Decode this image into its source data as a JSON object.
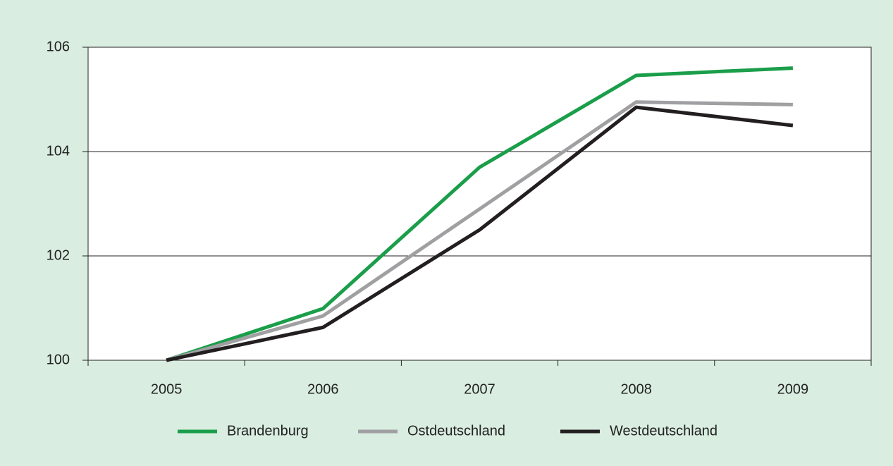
{
  "chart_data": {
    "type": "line",
    "categories": [
      "2005",
      "2006",
      "2007",
      "2008",
      "2009"
    ],
    "series": [
      {
        "name": "Brandenburg",
        "color": "#1a9e4a",
        "values": [
          100,
          100.99,
          103.7,
          105.46,
          105.6
        ]
      },
      {
        "name": "Ostdeutschland",
        "color": "#a0a0a3",
        "values": [
          100,
          100.85,
          102.9,
          104.95,
          104.9
        ]
      },
      {
        "name": "Westdeutschland",
        "color": "#231f20",
        "values": [
          100,
          100.63,
          102.5,
          104.85,
          104.5
        ]
      }
    ],
    "ylim": [
      100,
      106
    ],
    "yticks": [
      100,
      102,
      104,
      106
    ],
    "grid": true,
    "legend": "bottom"
  }
}
